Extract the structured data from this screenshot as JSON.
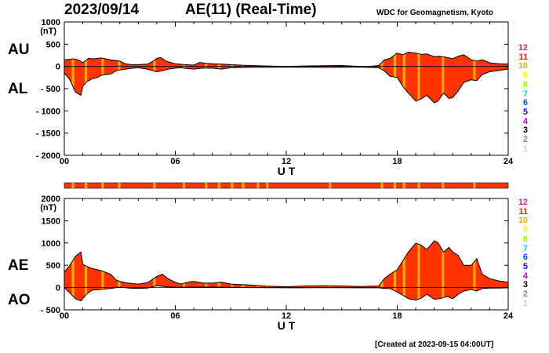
{
  "header": {
    "date": "2023/09/14",
    "title": "AE(11) (Real-Time)",
    "source": "WDC for Geomagnetism, Kyoto",
    "created": "[Created at 2023-09-15 04:00UT]"
  },
  "labels": {
    "au": "AU",
    "al": "AL",
    "ae": "AE",
    "ao": "AO"
  },
  "legend": {
    "items": [
      {
        "label": "12",
        "color": "#e8218a"
      },
      {
        "label": "11",
        "color": "#ff2200"
      },
      {
        "label": "10",
        "color": "#ffaa00"
      },
      {
        "label": "9",
        "color": "#ffff00"
      },
      {
        "label": "8",
        "color": "#aaee00"
      },
      {
        "label": "7",
        "color": "#00dddd"
      },
      {
        "label": "6",
        "color": "#0055ff"
      },
      {
        "label": "5",
        "color": "#2200cc"
      },
      {
        "label": "4",
        "color": "#cc00cc"
      },
      {
        "label": "3",
        "color": "#000000"
      },
      {
        "label": "2",
        "color": "#888888"
      },
      {
        "label": "1",
        "color": "#cccccc"
      }
    ]
  },
  "colors": {
    "fill": "#ff3300",
    "highlight": "#ffaa00",
    "outline": "#000000"
  },
  "chart_data": [
    {
      "type": "area",
      "panel": "AU/AL",
      "ylabel": "(nT)",
      "xlabel": "U T",
      "xlim": [
        0,
        24
      ],
      "ylim": [
        -2000,
        1000
      ],
      "yticks": [
        1000,
        500,
        0,
        -500,
        -1000,
        -1500,
        -2000
      ],
      "ytick_labels": [
        "1000",
        "500",
        "0",
        "- 500",
        "- 1000",
        "- 1500",
        "- 2000"
      ],
      "xticks": [
        0,
        6,
        12,
        18,
        24
      ],
      "xtick_labels": [
        "00",
        "06",
        "12",
        "18",
        "24"
      ],
      "series": [
        {
          "name": "AU",
          "x": [
            0,
            0.5,
            0.8,
            1,
            1.3,
            1.6,
            2,
            2.5,
            3,
            3.3,
            3.6,
            4,
            4.5,
            4.8,
            5,
            5.2,
            5.5,
            6,
            6.5,
            7,
            7.3,
            7.7,
            8,
            8.5,
            9,
            9.5,
            10,
            11,
            12,
            13,
            14,
            15,
            15.5,
            16,
            16.5,
            17,
            17.3,
            17.6,
            18,
            18.3,
            18.6,
            19,
            19.3,
            19.6,
            20,
            20.3,
            20.7,
            21,
            21.3,
            21.6,
            22,
            22.3,
            22.6,
            23,
            23.5,
            24
          ],
          "y": [
            150,
            170,
            140,
            80,
            180,
            170,
            190,
            150,
            120,
            60,
            40,
            40,
            50,
            120,
            180,
            200,
            120,
            60,
            40,
            30,
            90,
            70,
            60,
            50,
            40,
            30,
            20,
            10,
            0,
            10,
            15,
            20,
            10,
            0,
            0,
            20,
            150,
            180,
            300,
            260,
            320,
            300,
            270,
            280,
            220,
            230,
            200,
            170,
            230,
            260,
            150,
            120,
            150,
            80,
            60,
            50
          ]
        },
        {
          "name": "AL",
          "x": [
            0,
            0.3,
            0.6,
            0.9,
            1,
            1.2,
            1.5,
            1.8,
            2,
            2.5,
            2.8,
            3,
            3.3,
            3.7,
            4,
            4.5,
            5,
            5.3,
            5.6,
            6,
            6.3,
            6.7,
            7,
            7.5,
            8,
            8.5,
            9,
            10,
            11,
            12,
            13,
            14,
            15,
            16,
            17,
            17.3,
            17.6,
            18,
            18.3,
            18.6,
            19,
            19.3,
            19.6,
            20,
            20.2,
            20.5,
            20.8,
            21,
            21.3,
            21.6,
            22,
            22.3,
            22.6,
            23,
            23.5,
            24
          ],
          "y": [
            -150,
            -300,
            -580,
            -650,
            -450,
            -350,
            -280,
            -250,
            -200,
            -170,
            -100,
            -80,
            -60,
            -40,
            -30,
            -60,
            -120,
            -100,
            -60,
            -40,
            -30,
            -50,
            -60,
            -40,
            -40,
            -60,
            -30,
            -20,
            -20,
            -15,
            -20,
            -20,
            -20,
            -15,
            -30,
            -100,
            -220,
            -250,
            -450,
            -600,
            -780,
            -730,
            -650,
            -820,
            -780,
            -600,
            -720,
            -700,
            -550,
            -360,
            -300,
            -320,
            -180,
            -120,
            -90,
            -60
          ]
        }
      ]
    },
    {
      "type": "area",
      "panel": "AE/AO",
      "ylabel": "(nT)",
      "xlabel": "U T",
      "xlim": [
        0,
        24
      ],
      "ylim": [
        -500,
        2000
      ],
      "yticks": [
        2000,
        1500,
        1000,
        500,
        0,
        -500
      ],
      "ytick_labels": [
        "2000",
        "1500",
        "1000",
        "500",
        "0",
        "- 500"
      ],
      "xticks": [
        0,
        6,
        12,
        18,
        24
      ],
      "xtick_labels": [
        "00",
        "06",
        "12",
        "18",
        "24"
      ],
      "series": [
        {
          "name": "AE",
          "x": [
            0,
            0.3,
            0.6,
            0.9,
            1,
            1.2,
            1.5,
            1.8,
            2,
            2.5,
            2.8,
            3,
            3.3,
            3.7,
            4,
            4.5,
            5,
            5.3,
            5.6,
            6,
            6.3,
            6.7,
            7,
            7.5,
            8,
            8.5,
            9,
            10,
            11,
            12,
            13,
            14,
            15,
            16,
            17,
            17.3,
            17.6,
            18,
            18.3,
            18.6,
            19,
            19.3,
            19.6,
            20,
            20.2,
            20.5,
            20.8,
            21,
            21.3,
            21.6,
            22,
            22.3,
            22.6,
            23,
            23.5,
            24
          ],
          "y": [
            350,
            500,
            700,
            800,
            520,
            480,
            430,
            400,
            380,
            300,
            170,
            140,
            110,
            90,
            80,
            110,
            250,
            300,
            200,
            120,
            80,
            120,
            140,
            100,
            100,
            120,
            80,
            60,
            30,
            20,
            35,
            40,
            35,
            25,
            35,
            200,
            300,
            400,
            600,
            800,
            1000,
            950,
            850,
            1050,
            1010,
            800,
            900,
            800,
            720,
            500,
            500,
            650,
            300,
            200,
            150,
            120
          ]
        },
        {
          "name": "AO",
          "x": [
            0,
            0.3,
            0.6,
            0.9,
            1.2,
            1.5,
            2,
            2.5,
            3,
            3.5,
            4,
            4.5,
            5,
            5.5,
            6,
            7,
            8,
            9,
            10,
            12,
            14,
            16,
            17,
            17.3,
            17.6,
            18,
            18.3,
            18.6,
            19,
            19.3,
            19.6,
            20,
            20.3,
            20.7,
            21,
            21.3,
            21.6,
            22,
            22.3,
            22.6,
            23,
            23.5,
            24
          ],
          "y": [
            0,
            -120,
            -250,
            -300,
            -150,
            -60,
            -40,
            -20,
            10,
            -10,
            -20,
            -10,
            40,
            20,
            5,
            10,
            10,
            5,
            0,
            -5,
            -3,
            -5,
            -5,
            -20,
            -20,
            -100,
            -170,
            -250,
            -280,
            -240,
            -150,
            -260,
            -250,
            -200,
            -250,
            -150,
            -80,
            -40,
            -80,
            -20,
            -10,
            -10,
            -5
          ]
        }
      ]
    }
  ]
}
